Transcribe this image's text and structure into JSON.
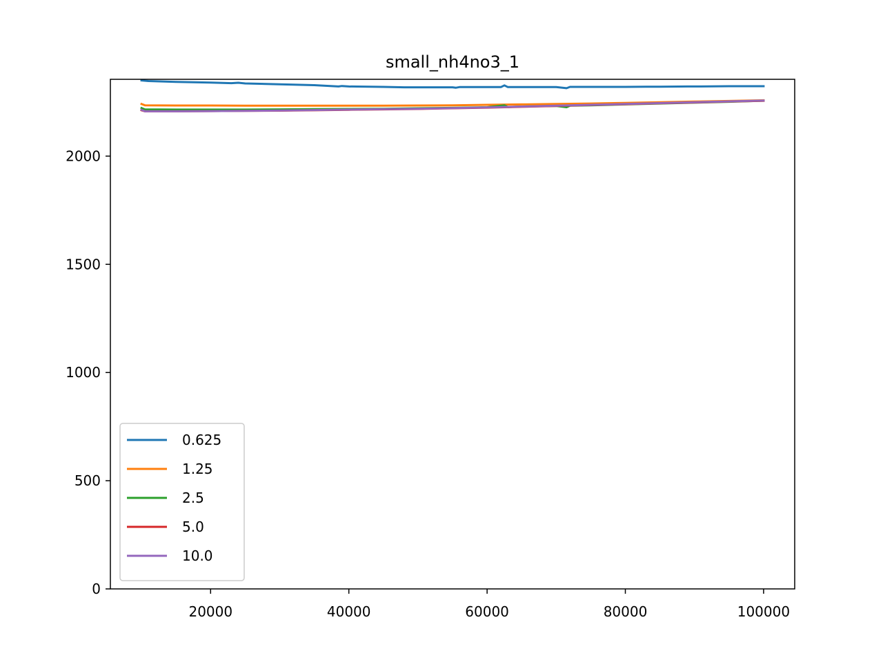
{
  "chart_data": {
    "type": "line",
    "title": "small_nh4no3_1",
    "xlabel": "",
    "ylabel": "",
    "xlim": [
      5500,
      104500
    ],
    "ylim": [
      0,
      2355
    ],
    "xticks": [
      20000,
      40000,
      60000,
      80000,
      100000
    ],
    "xtick_labels": [
      "20000",
      "40000",
      "60000",
      "80000",
      "100000"
    ],
    "yticks": [
      0,
      500,
      1000,
      1500,
      2000
    ],
    "ytick_labels": [
      "0",
      "500",
      "1000",
      "1500",
      "2000"
    ],
    "grid": false,
    "legend_position": "lower-left",
    "series": [
      {
        "name": "0.625",
        "color": "#1f77b4",
        "x": [
          10000,
          11000,
          15000,
          20000,
          23000,
          24000,
          25000,
          30000,
          35000,
          38500,
          39000,
          40000,
          45000,
          48000,
          50000,
          55000,
          55500,
          56000,
          60000,
          62000,
          62500,
          63000,
          65000,
          66000,
          70000,
          71500,
          72000,
          75000,
          80000,
          83000,
          85000,
          89000,
          90000,
          95000,
          100000
        ],
        "y": [
          2350,
          2347,
          2343,
          2340,
          2337,
          2339,
          2336,
          2332,
          2328,
          2322,
          2324,
          2322,
          2320,
          2318,
          2318,
          2318,
          2316,
          2319,
          2319,
          2319,
          2327,
          2319,
          2319,
          2319,
          2319,
          2314,
          2320,
          2320,
          2320,
          2321,
          2321,
          2322,
          2322,
          2323,
          2323
        ]
      },
      {
        "name": "1.25",
        "color": "#ff7f0e",
        "x": [
          10000,
          10500,
          15000,
          20000,
          25000,
          30000,
          35000,
          40000,
          45000,
          50000,
          55000,
          60000,
          65000,
          70000,
          75000,
          80000,
          85000,
          90000,
          95000,
          100000
        ],
        "y": [
          2241,
          2235,
          2234,
          2234,
          2233,
          2233,
          2233,
          2233,
          2233,
          2234,
          2235,
          2237,
          2239,
          2241,
          2243,
          2246,
          2249,
          2252,
          2255,
          2258
        ]
      },
      {
        "name": "2.5",
        "color": "#2ca02c",
        "x": [
          10000,
          10500,
          15000,
          20000,
          25000,
          30000,
          35000,
          40000,
          45000,
          50000,
          55000,
          60000,
          62500,
          63000,
          65000,
          70000,
          71500,
          72000,
          75000,
          80000,
          85000,
          90000,
          95000,
          100000
        ],
        "y": [
          2222,
          2216,
          2215,
          2215,
          2215,
          2216,
          2217,
          2218,
          2219,
          2221,
          2223,
          2226,
          2235,
          2227,
          2229,
          2232,
          2226,
          2233,
          2235,
          2239,
          2243,
          2247,
          2251,
          2256
        ]
      },
      {
        "name": "5.0",
        "color": "#d62728",
        "x": [
          10000,
          10500,
          15000,
          20000,
          25000,
          30000,
          35000,
          40000,
          45000,
          50000,
          55000,
          60000,
          65000,
          70000,
          75000,
          80000,
          85000,
          90000,
          95000,
          100000
        ],
        "y": [
          2212,
          2207,
          2207,
          2208,
          2209,
          2210,
          2212,
          2214,
          2216,
          2218,
          2221,
          2224,
          2228,
          2232,
          2236,
          2240,
          2244,
          2248,
          2252,
          2256
        ]
      },
      {
        "name": "10.0",
        "color": "#9467bd",
        "x": [
          10000,
          10500,
          15000,
          20000,
          25000,
          30000,
          35000,
          40000,
          45000,
          50000,
          55000,
          60000,
          65000,
          70000,
          75000,
          80000,
          85000,
          90000,
          95000,
          100000
        ],
        "y": [
          2214,
          2207,
          2207,
          2208,
          2209,
          2211,
          2213,
          2215,
          2217,
          2219,
          2222,
          2225,
          2229,
          2233,
          2237,
          2241,
          2245,
          2249,
          2253,
          2257
        ]
      }
    ]
  }
}
